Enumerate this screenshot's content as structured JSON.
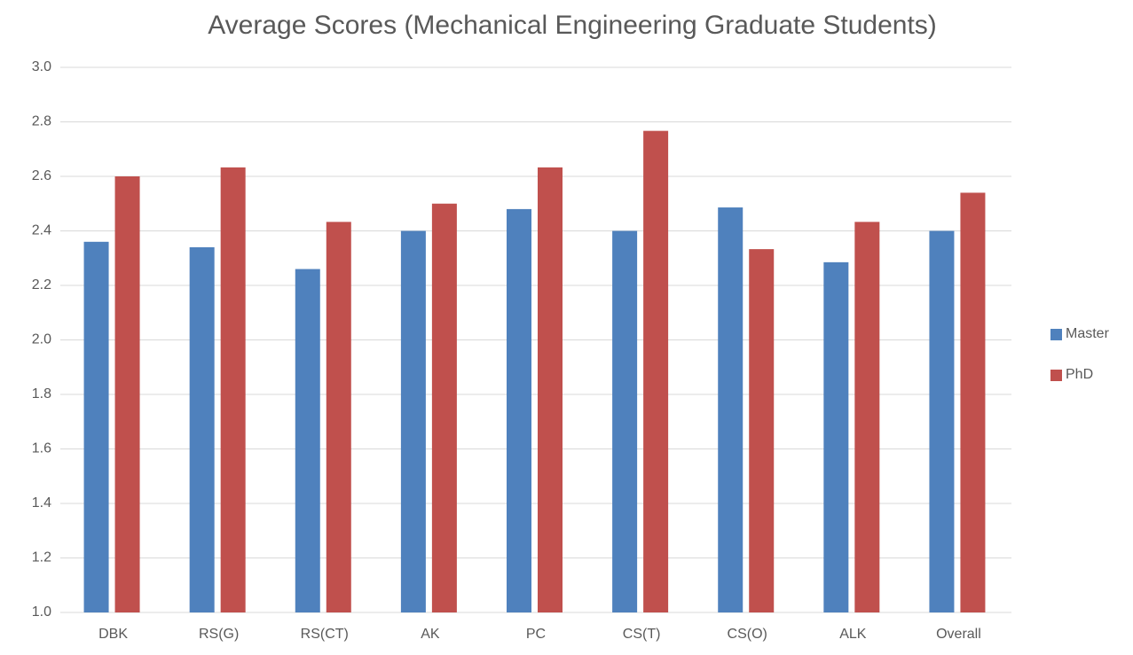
{
  "chart_data": {
    "type": "bar",
    "title": "Average Scores (Mechanical Engineering Graduate Students)",
    "categories": [
      "DBK",
      "RS(G)",
      "RS(CT)",
      "AK",
      "PC",
      "CS(T)",
      "CS(O)",
      "ALK",
      "Overall"
    ],
    "series": [
      {
        "name": "Master",
        "color": "#4f81bd",
        "values": [
          2.36,
          2.34,
          2.26,
          2.4,
          2.48,
          2.4,
          2.486,
          2.285,
          2.4
        ]
      },
      {
        "name": "PhD",
        "color": "#c0504d",
        "values": [
          2.6,
          2.633,
          2.433,
          2.5,
          2.633,
          2.767,
          2.333,
          2.433,
          2.54
        ]
      }
    ],
    "ylim": [
      1.0,
      3.0
    ],
    "yticks": [
      {
        "value": 1.0,
        "label": "1.0"
      },
      1.2,
      1.4,
      1.6,
      1.8,
      {
        "value": 2.0,
        "label": "2.0"
      },
      2.2,
      2.4,
      2.6,
      2.8,
      {
        "value": 3.0,
        "label": "3.0"
      }
    ],
    "grid": true,
    "legend": "right"
  }
}
